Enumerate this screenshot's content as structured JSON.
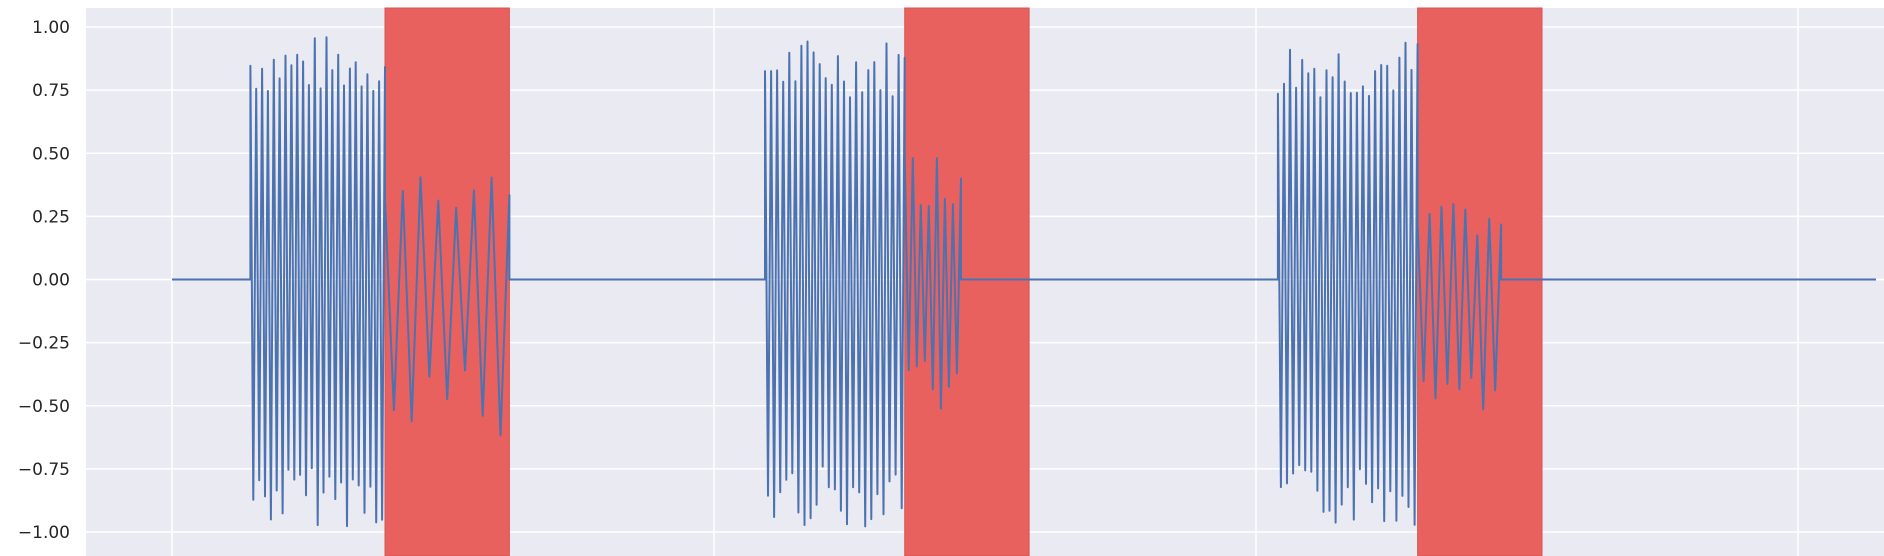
{
  "chart_data": {
    "type": "line",
    "title": "",
    "xlabel": "",
    "ylabel": "",
    "ylim": [
      -1.0,
      1.0
    ],
    "yticks": [
      1.0,
      0.75,
      0.5,
      0.25,
      0.0,
      -0.25,
      -0.5,
      -0.75,
      -1.0
    ],
    "ytick_labels": [
      "1.00",
      "0.75",
      "0.50",
      "0.25",
      "0.00",
      "−0.25",
      "−0.50",
      "−0.75",
      "−1.00"
    ],
    "xtick_labels": [],
    "grid": true,
    "background": "#eaeaf2",
    "grid_color": "#ffffff",
    "line_color": "#4c72b0",
    "highlight_color": "#e8615f",
    "series": [
      {
        "bursts": [
          {
            "start": 0.046,
            "end": 0.125,
            "max": 0.97,
            "min": -0.98
          },
          {
            "start": 0.348,
            "end": 0.43,
            "max": 0.96,
            "min": -0.98
          },
          {
            "start": 0.649,
            "end": 0.731,
            "max": 0.96,
            "min": -0.98
          }
        ],
        "decays": [
          {
            "start": 0.125,
            "end": 0.198,
            "max": 0.48,
            "min": -0.63
          },
          {
            "start": 0.43,
            "end": 0.463,
            "max": 0.52,
            "min": -0.55
          },
          {
            "start": 0.731,
            "end": 0.78,
            "max": 0.3,
            "min": -0.52
          }
        ]
      }
    ],
    "highlighted_regions": [
      {
        "x_start": 0.125,
        "x_end": 0.198
      },
      {
        "x_start": 0.43,
        "x_end": 0.503
      },
      {
        "x_start": 0.731,
        "x_end": 0.804
      }
    ]
  }
}
